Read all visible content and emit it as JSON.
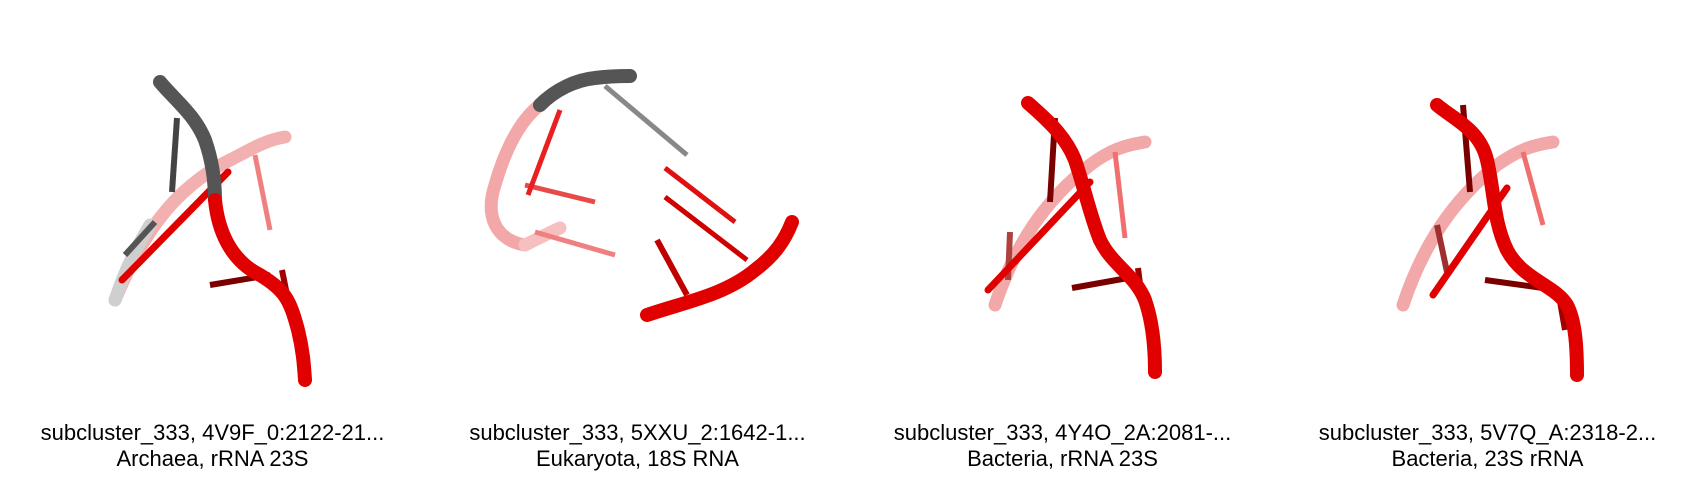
{
  "panels": [
    {
      "title": "subcluster_333, 4V9F_0:2122-21...",
      "subtitle": "Archaea, rRNA 23S"
    },
    {
      "title": "subcluster_333, 5XXU_2:1642-1...",
      "subtitle": "Eukaryota, 18S RNA"
    },
    {
      "title": "subcluster_333, 4Y4O_2A:2081-...",
      "subtitle": "Bacteria, rRNA 23S"
    },
    {
      "title": "subcluster_333, 5V7Q_A:2318-2...",
      "subtitle": "Bacteria, 23S rRNA"
    }
  ],
  "colors": {
    "highlight": "#e00000",
    "backbone_gray": "#555555",
    "faded_red": "#f0a0a0",
    "faded_gray": "#c8c8c8",
    "dark_red": "#7a0000"
  }
}
